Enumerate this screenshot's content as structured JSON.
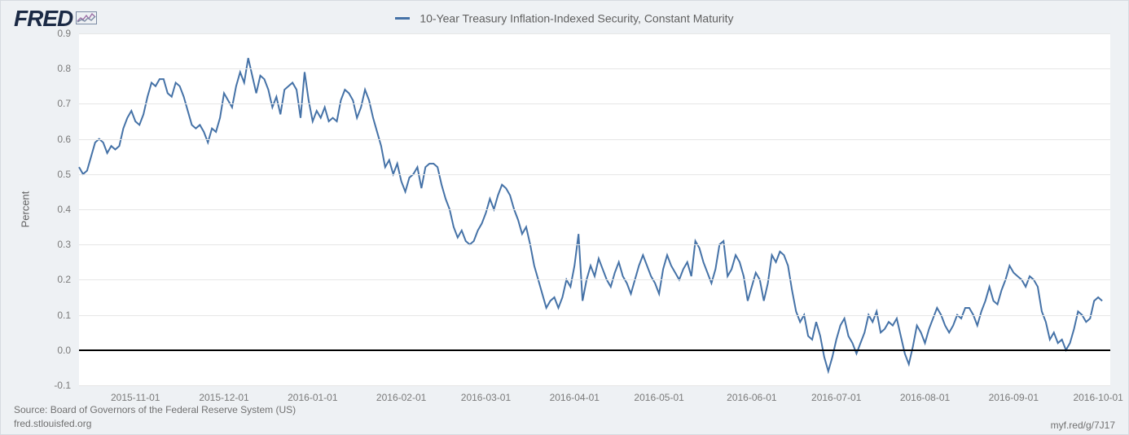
{
  "logo": {
    "text": "FRED"
  },
  "legend": {
    "color": "#4572a7",
    "label": "10-Year Treasury Inflation-Indexed Security, Constant Maturity"
  },
  "footer": {
    "source": "Source: Board of Governors of the Federal Reserve System (US)",
    "site": "fred.stlouisfed.org",
    "short_url": "myf.red/g/7J17"
  },
  "chart": {
    "type": "line",
    "background_color": "#ffffff",
    "page_background": "#eef1f4",
    "grid_color": "#e6e6e6",
    "zero_line_color": "#000000",
    "line_color": "#4572a7",
    "line_width": 2,
    "y_axis": {
      "title": "Percent",
      "min": -0.1,
      "max": 0.9,
      "tick_step": 0.1,
      "ticks": [
        "-0.1",
        "0.0",
        "0.1",
        "0.2",
        "0.3",
        "0.4",
        "0.5",
        "0.6",
        "0.7",
        "0.8",
        "0.9"
      ],
      "label_fontsize": 12,
      "title_fontsize": 13
    },
    "x_axis": {
      "min_index": 0,
      "max_index": 256,
      "ticks": [
        {
          "i": 14,
          "label": "2015-11-01"
        },
        {
          "i": 36,
          "label": "2015-12-01"
        },
        {
          "i": 58,
          "label": "2016-01-01"
        },
        {
          "i": 80,
          "label": "2016-02-01"
        },
        {
          "i": 101,
          "label": "2016-03-01"
        },
        {
          "i": 123,
          "label": "2016-04-01"
        },
        {
          "i": 144,
          "label": "2016-05-01"
        },
        {
          "i": 167,
          "label": "2016-06-01"
        },
        {
          "i": 188,
          "label": "2016-07-01"
        },
        {
          "i": 210,
          "label": "2016-08-01"
        },
        {
          "i": 232,
          "label": "2016-09-01"
        },
        {
          "i": 253,
          "label": "2016-10-01"
        }
      ],
      "label_fontsize": 12
    },
    "series": {
      "values": [
        0.52,
        0.5,
        0.51,
        0.55,
        0.59,
        0.6,
        0.59,
        0.56,
        0.58,
        0.57,
        0.58,
        0.63,
        0.66,
        0.68,
        0.65,
        0.64,
        0.67,
        0.72,
        0.76,
        0.75,
        0.77,
        0.77,
        0.73,
        0.72,
        0.76,
        0.75,
        0.72,
        0.68,
        0.64,
        0.63,
        0.64,
        0.62,
        0.59,
        0.63,
        0.62,
        0.66,
        0.73,
        0.71,
        0.69,
        0.75,
        0.79,
        0.76,
        0.83,
        0.78,
        0.73,
        0.78,
        0.77,
        0.74,
        0.69,
        0.72,
        0.67,
        0.74,
        0.75,
        0.76,
        0.74,
        0.66,
        0.79,
        0.71,
        0.65,
        0.68,
        0.66,
        0.69,
        0.65,
        0.66,
        0.65,
        0.71,
        0.74,
        0.73,
        0.71,
        0.66,
        0.69,
        0.74,
        0.71,
        0.66,
        0.62,
        0.58,
        0.52,
        0.54,
        0.5,
        0.53,
        0.48,
        0.45,
        0.49,
        0.5,
        0.52,
        0.46,
        0.52,
        0.53,
        0.53,
        0.52,
        0.47,
        0.43,
        0.4,
        0.35,
        0.32,
        0.34,
        0.31,
        0.3,
        0.31,
        0.34,
        0.36,
        0.39,
        0.43,
        0.4,
        0.44,
        0.47,
        0.46,
        0.44,
        0.4,
        0.37,
        0.33,
        0.35,
        0.3,
        0.24,
        0.2,
        0.16,
        0.12,
        0.14,
        0.15,
        0.12,
        0.15,
        0.2,
        0.18,
        0.24,
        0.33,
        0.14,
        0.2,
        0.24,
        0.21,
        0.26,
        0.23,
        0.2,
        0.18,
        0.22,
        0.25,
        0.21,
        0.19,
        0.16,
        0.2,
        0.24,
        0.27,
        0.24,
        0.21,
        0.19,
        0.16,
        0.23,
        0.27,
        0.24,
        0.22,
        0.2,
        0.23,
        0.25,
        0.21,
        0.31,
        0.29,
        0.25,
        0.22,
        0.19,
        0.23,
        0.3,
        0.31,
        0.21,
        0.23,
        0.27,
        0.25,
        0.21,
        0.14,
        0.18,
        0.22,
        0.2,
        0.14,
        0.19,
        0.27,
        0.25,
        0.28,
        0.27,
        0.24,
        0.17,
        0.11,
        0.08,
        0.1,
        0.04,
        0.03,
        0.08,
        0.04,
        -0.02,
        -0.06,
        -0.02,
        0.03,
        0.07,
        0.09,
        0.04,
        0.02,
        -0.01,
        0.02,
        0.05,
        0.1,
        0.08,
        0.11,
        0.05,
        0.06,
        0.08,
        0.07,
        0.09,
        0.04,
        -0.01,
        -0.04,
        0.01,
        0.07,
        0.05,
        0.02,
        0.06,
        0.09,
        0.12,
        0.1,
        0.07,
        0.05,
        0.07,
        0.1,
        0.09,
        0.12,
        0.12,
        0.1,
        0.07,
        0.11,
        0.14,
        0.18,
        0.14,
        0.13,
        0.17,
        0.2,
        0.24,
        0.22,
        0.21,
        0.2,
        0.18,
        0.21,
        0.2,
        0.18,
        0.11,
        0.08,
        0.03,
        0.05,
        0.02,
        0.03,
        0.0,
        0.02,
        0.06,
        0.11,
        0.1,
        0.08,
        0.09,
        0.14,
        0.15,
        0.14
      ]
    }
  }
}
